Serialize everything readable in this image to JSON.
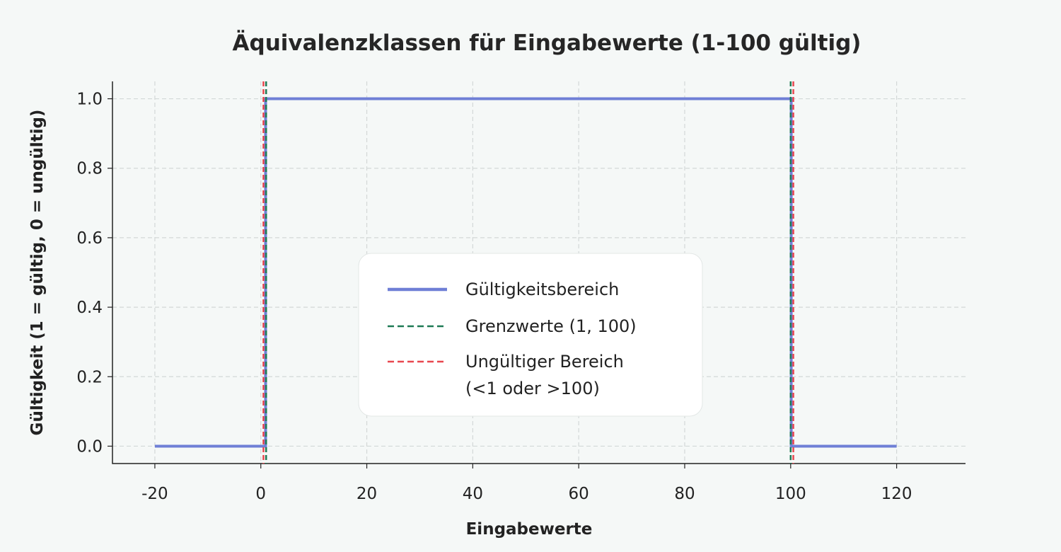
{
  "chart_data": {
    "type": "line",
    "title": "Äquivalenzklassen für Eingabewerte (1-100 gültig)",
    "xlabel": "Eingabewerte",
    "ylabel": "Gültigkeit (1 = gültig, 0 = ungültig)",
    "xlim": [
      -28,
      133
    ],
    "ylim": [
      -0.05,
      1.05
    ],
    "x_ticks": [
      -20,
      0,
      20,
      40,
      60,
      80,
      100,
      120
    ],
    "y_ticks": [
      0.0,
      0.2,
      0.4,
      0.6,
      0.8,
      1.0
    ],
    "x_tick_labels": [
      "-20",
      "0",
      "20",
      "40",
      "60",
      "80",
      "100",
      "120"
    ],
    "y_tick_labels": [
      "0.0",
      "0.2",
      "0.4",
      "0.6",
      "0.8",
      "1.0"
    ],
    "grid": true,
    "legend_position": "center",
    "series": [
      {
        "name": "Gültigkeitsbereich",
        "style": "solid",
        "color": "#6f7fd6",
        "x": [
          -20,
          0.9,
          0.9,
          100.1,
          100.1,
          120
        ],
        "y": [
          0,
          0,
          1,
          1,
          0,
          0
        ]
      }
    ],
    "vlines": [
      {
        "name": "Grenzwerte (1, 100)",
        "color": "#1e7a55",
        "style": "dashed",
        "x": [
          1,
          100
        ]
      },
      {
        "name": "Ungültiger Bereich (<1 oder >100)",
        "color": "#e8474f",
        "style": "dashed",
        "x": [
          0.5,
          100.5
        ]
      }
    ],
    "legend": {
      "entries": [
        {
          "label_lines": [
            "Gültigkeitsbereich"
          ],
          "color": "#6f7fd6",
          "style": "solid"
        },
        {
          "label_lines": [
            "Grenzwerte (1, 100)"
          ],
          "color": "#1e7a55",
          "style": "dashed"
        },
        {
          "label_lines": [
            "Ungültiger Bereich",
            "(<1 oder >100)"
          ],
          "color": "#e8474f",
          "style": "dashed"
        }
      ]
    }
  }
}
